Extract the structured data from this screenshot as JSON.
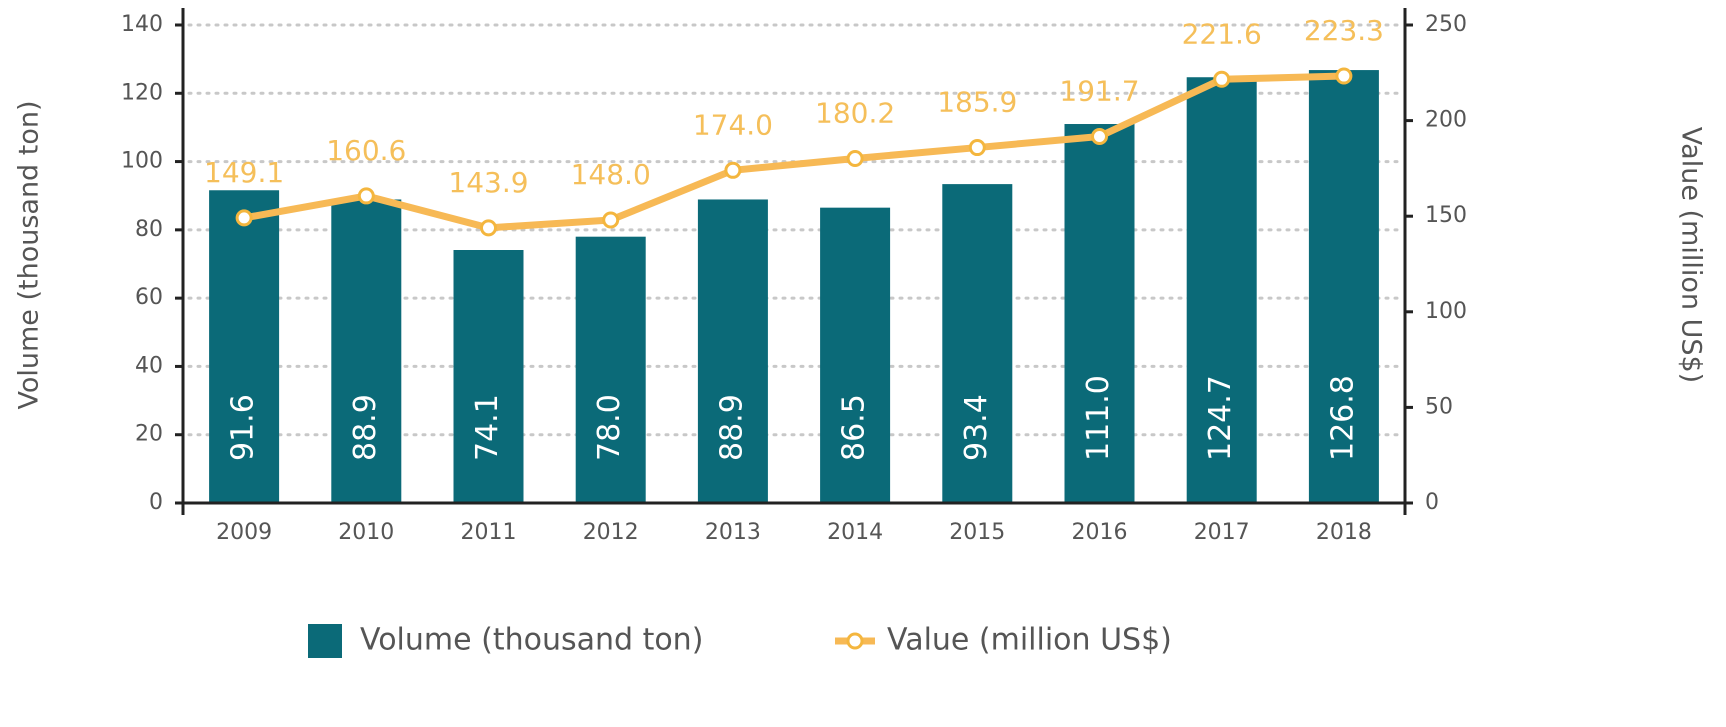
{
  "chart_data": {
    "type": "bar",
    "categories": [
      "2009",
      "2010",
      "2011",
      "2012",
      "2013",
      "2014",
      "2015",
      "2016",
      "2017",
      "2018"
    ],
    "series": [
      {
        "name": "Volume (thousand ton)",
        "type": "bar",
        "color": "#0b6a78",
        "values": [
          91.6,
          88.9,
          74.1,
          78.0,
          88.9,
          86.5,
          93.4,
          111.0,
          124.7,
          126.8
        ],
        "value_labels": [
          "91.6",
          "88.9",
          "74.1",
          "78.0",
          "88.9",
          "86.5",
          "93.4",
          "111.0",
          "124.7",
          "126.8"
        ]
      },
      {
        "name": "Value (million US$)",
        "type": "line",
        "axis": "y2",
        "color": "#f7b955",
        "values": [
          149.1,
          160.6,
          143.9,
          148.0,
          174.0,
          180.2,
          185.9,
          191.7,
          221.6,
          223.3
        ],
        "value_labels": [
          "149.1",
          "160.6",
          "143.9",
          "148.0",
          "174.0",
          "180.2",
          "185.9",
          "191.7",
          "221.6",
          "223.3"
        ]
      }
    ],
    "y_label": "Volume (thousand ton)",
    "y2_label": "Value (million US$)",
    "ylim": [
      0,
      140
    ],
    "yticks": [
      0,
      20,
      40,
      60,
      80,
      100,
      120,
      140
    ],
    "y2lim": [
      0,
      250
    ],
    "y2ticks": [
      0,
      50,
      100,
      150,
      200,
      250
    ],
    "grid": true,
    "legend": "bottom"
  }
}
